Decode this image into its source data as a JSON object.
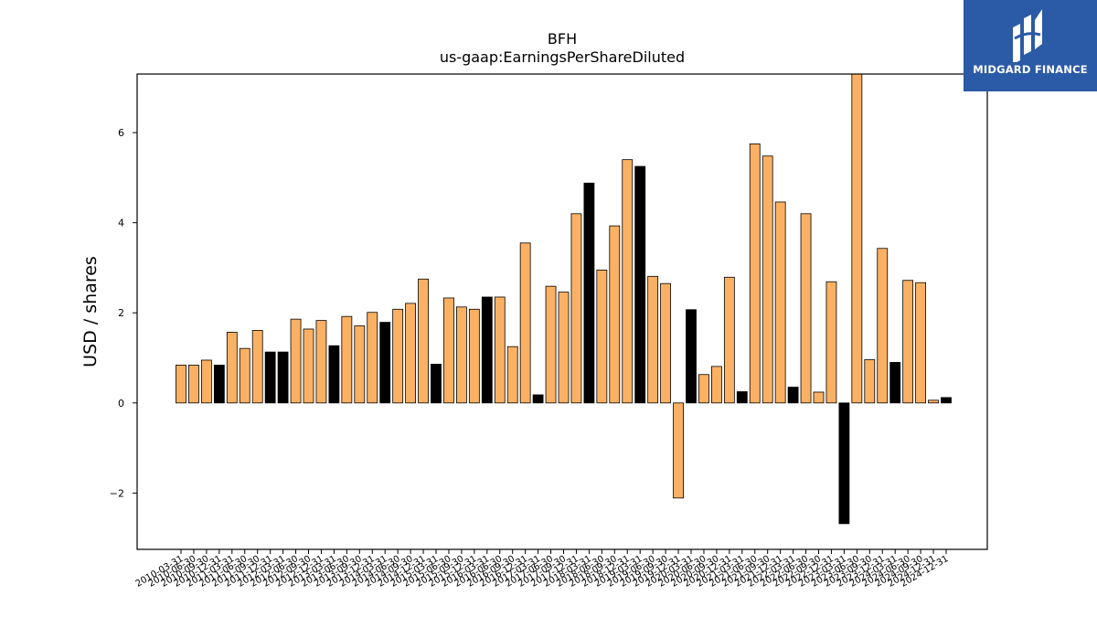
{
  "chart_data": {
    "type": "bar",
    "title": "BFH",
    "subtitle": "us-gaap:EarningsPerShareDiluted",
    "xlabel": "",
    "ylabel": "USD / shares",
    "ylim": [
      -3.25,
      7.3
    ],
    "yticks": [
      -2,
      0,
      2,
      4,
      6
    ],
    "ytick_labels": [
      "−2",
      "0",
      "2",
      "4",
      "6"
    ],
    "grid": false,
    "categories": [
      "2010-03-31",
      "2010-06-30",
      "2010-09-30",
      "2010-12-31",
      "2011-03-31",
      "2011-06-30",
      "2011-09-30",
      "2011-12-31",
      "2012-03-31",
      "2012-06-30",
      "2012-09-30",
      "2012-12-31",
      "2013-03-31",
      "2013-06-30",
      "2013-09-30",
      "2013-12-31",
      "2014-03-31",
      "2014-06-30",
      "2014-09-30",
      "2014-12-31",
      "2015-03-31",
      "2015-06-30",
      "2015-09-30",
      "2015-12-31",
      "2016-03-31",
      "2016-06-30",
      "2016-09-30",
      "2016-12-31",
      "2017-03-31",
      "2017-06-30",
      "2017-09-30",
      "2017-12-31",
      "2018-03-31",
      "2018-06-30",
      "2018-09-30",
      "2018-12-31",
      "2019-03-31",
      "2019-06-30",
      "2019-09-30",
      "2019-12-31",
      "2020-03-31",
      "2020-06-30",
      "2020-09-30",
      "2020-12-31",
      "2021-03-31",
      "2021-06-30",
      "2021-09-30",
      "2021-12-31",
      "2022-03-31",
      "2022-06-30",
      "2022-09-30",
      "2022-12-31",
      "2023-03-31",
      "2023-06-30",
      "2023-09-30",
      "2023-12-31",
      "2024-03-31",
      "2024-06-30",
      "2024-09-30",
      "2024-12-31",
      "2024-12-31"
    ],
    "values": [
      0.84,
      0.84,
      0.95,
      0.84,
      1.57,
      1.21,
      1.61,
      1.13,
      1.13,
      1.86,
      1.64,
      1.83,
      1.27,
      1.92,
      1.71,
      2.01,
      1.79,
      2.08,
      2.21,
      2.75,
      0.86,
      2.33,
      2.13,
      2.08,
      2.35,
      2.35,
      1.25,
      3.55,
      0.18,
      2.59,
      2.46,
      4.2,
      4.88,
      2.95,
      3.93,
      5.4,
      5.25,
      2.81,
      2.65,
      -2.11,
      2.07,
      0.63,
      0.81,
      2.79,
      0.25,
      5.75,
      5.48,
      4.46,
      0.35,
      4.2,
      0.24,
      2.69,
      -2.68,
      7.4,
      0.96,
      3.43,
      0.9,
      2.72,
      2.67,
      0.06,
      0.12
    ],
    "colors": [
      "o",
      "o",
      "o",
      "k",
      "o",
      "o",
      "o",
      "k",
      "k",
      "o",
      "o",
      "o",
      "k",
      "o",
      "o",
      "o",
      "k",
      "o",
      "o",
      "o",
      "k",
      "o",
      "o",
      "o",
      "k",
      "o",
      "o",
      "o",
      "k",
      "o",
      "o",
      "o",
      "k",
      "o",
      "o",
      "o",
      "k",
      "o",
      "o",
      "o",
      "k",
      "o",
      "o",
      "o",
      "k",
      "o",
      "o",
      "o",
      "k",
      "o",
      "o",
      "o",
      "k",
      "o",
      "o",
      "o",
      "k",
      "o",
      "o",
      "o",
      "k"
    ],
    "palette": {
      "o": "#fbb164",
      "k": "#000000"
    }
  },
  "logo": {
    "text": "MIDGARD FINANCE",
    "icon": "midgard-logo-icon"
  }
}
